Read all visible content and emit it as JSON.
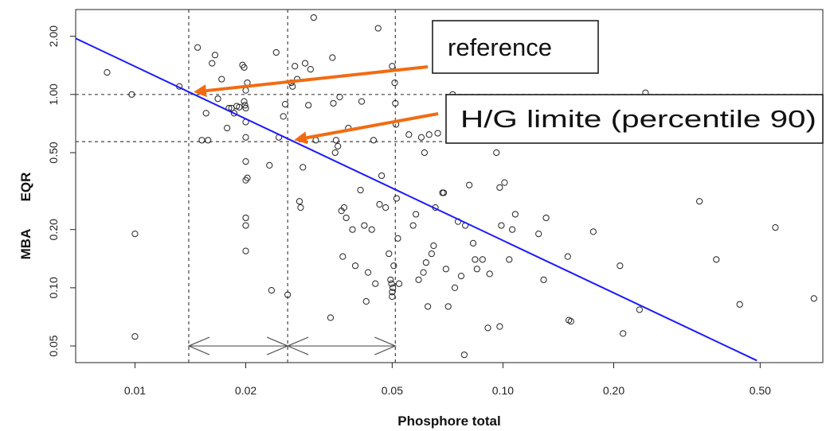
{
  "chart_data": {
    "type": "scatter",
    "title": "",
    "xlabel": "Phosphore total",
    "ylabel_parts": [
      "MBA",
      "EQR"
    ],
    "x_scale": "log",
    "y_scale": "log",
    "xlim": [
      0.0069,
      0.74
    ],
    "ylim": [
      0.041,
      2.75
    ],
    "x_ticks": [
      0.01,
      0.02,
      0.05,
      0.1,
      0.2,
      0.5
    ],
    "x_tick_labels": [
      "0.01",
      "0.02",
      "0.05",
      "0.10",
      "0.20",
      "0.50"
    ],
    "y_ticks": [
      0.05,
      0.1,
      0.2,
      0.5,
      1.0,
      2.0
    ],
    "y_tick_labels": [
      "0.05",
      "0.10",
      "0.20",
      "0.50",
      "1.00",
      "2.00"
    ],
    "grid": false,
    "points": [
      [
        0.0084,
        1.3
      ],
      [
        0.0098,
        1.0
      ],
      [
        0.01,
        0.19
      ],
      [
        0.01,
        0.056
      ],
      [
        0.0132,
        1.1
      ],
      [
        0.0148,
        1.75
      ],
      [
        0.0152,
        0.58
      ],
      [
        0.0156,
        0.8
      ],
      [
        0.0158,
        0.58
      ],
      [
        0.0162,
        1.45
      ],
      [
        0.0165,
        1.6
      ],
      [
        0.0168,
        0.95
      ],
      [
        0.0172,
        1.2
      ],
      [
        0.0178,
        0.67
      ],
      [
        0.018,
        0.85
      ],
      [
        0.0183,
        0.85
      ],
      [
        0.0186,
        0.8
      ],
      [
        0.0189,
        0.87
      ],
      [
        0.0192,
        0.86
      ],
      [
        0.0196,
        1.42
      ],
      [
        0.0198,
        1.38
      ],
      [
        0.0198,
        0.92
      ],
      [
        0.0199,
        0.88
      ],
      [
        0.02,
        0.85
      ],
      [
        0.02,
        1.05
      ],
      [
        0.02,
        0.72
      ],
      [
        0.02,
        0.6
      ],
      [
        0.02,
        0.45
      ],
      [
        0.02,
        0.36
      ],
      [
        0.02,
        0.23
      ],
      [
        0.02,
        0.21
      ],
      [
        0.02,
        0.155
      ],
      [
        0.0202,
        0.37
      ],
      [
        0.0202,
        1.15
      ],
      [
        0.0232,
        0.43
      ],
      [
        0.0235,
        0.097
      ],
      [
        0.0242,
        1.65
      ],
      [
        0.0246,
        0.6
      ],
      [
        0.0253,
        0.77
      ],
      [
        0.0256,
        0.89
      ],
      [
        0.026,
        0.092
      ],
      [
        0.0266,
        1.15
      ],
      [
        0.0268,
        1.1
      ],
      [
        0.0272,
        1.4
      ],
      [
        0.0276,
        1.2
      ],
      [
        0.028,
        0.28
      ],
      [
        0.0282,
        0.26
      ],
      [
        0.0286,
        0.42
      ],
      [
        0.029,
        1.45
      ],
      [
        0.0296,
        0.88
      ],
      [
        0.03,
        1.35
      ],
      [
        0.0306,
        2.5
      ],
      [
        0.031,
        0.58
      ],
      [
        0.034,
        0.07
      ],
      [
        0.0344,
        1.55
      ],
      [
        0.0346,
        0.9
      ],
      [
        0.035,
        0.5
      ],
      [
        0.0352,
        0.58
      ],
      [
        0.0356,
        0.54
      ],
      [
        0.036,
        0.97
      ],
      [
        0.0364,
        0.25
      ],
      [
        0.0367,
        0.145
      ],
      [
        0.037,
        0.26
      ],
      [
        0.0375,
        0.23
      ],
      [
        0.038,
        0.67
      ],
      [
        0.039,
        0.2
      ],
      [
        0.0397,
        0.13
      ],
      [
        0.041,
        0.32
      ],
      [
        0.0413,
        0.92
      ],
      [
        0.042,
        0.21
      ],
      [
        0.0425,
        0.085
      ],
      [
        0.043,
        0.12
      ],
      [
        0.044,
        0.2
      ],
      [
        0.0445,
        0.58
      ],
      [
        0.045,
        0.105
      ],
      [
        0.0458,
        2.2
      ],
      [
        0.0462,
        0.27
      ],
      [
        0.0468,
        0.38
      ],
      [
        0.048,
        0.26
      ],
      [
        0.049,
        0.15
      ],
      [
        0.0495,
        0.11
      ],
      [
        0.0498,
        0.105
      ],
      [
        0.05,
        1.4
      ],
      [
        0.05,
        0.095
      ],
      [
        0.05,
        0.09
      ],
      [
        0.0502,
        0.1
      ],
      [
        0.0505,
        0.13
      ],
      [
        0.0508,
        1.15
      ],
      [
        0.051,
        0.9
      ],
      [
        0.0512,
        0.7
      ],
      [
        0.0514,
        0.29
      ],
      [
        0.0518,
        0.18
      ],
      [
        0.0522,
        0.105
      ],
      [
        0.0555,
        0.62
      ],
      [
        0.057,
        0.21
      ],
      [
        0.058,
        0.24
      ],
      [
        0.059,
        0.11
      ],
      [
        0.06,
        0.6
      ],
      [
        0.0608,
        0.12
      ],
      [
        0.0612,
        0.5
      ],
      [
        0.0618,
        0.135
      ],
      [
        0.0625,
        0.08
      ],
      [
        0.063,
        0.62
      ],
      [
        0.064,
        0.15
      ],
      [
        0.0648,
        0.165
      ],
      [
        0.0655,
        0.26
      ],
      [
        0.0665,
        0.63
      ],
      [
        0.0685,
        0.31
      ],
      [
        0.069,
        0.31
      ],
      [
        0.07,
        0.125
      ],
      [
        0.071,
        0.08
      ],
      [
        0.072,
        0.64
      ],
      [
        0.073,
        1.0
      ],
      [
        0.074,
        0.1
      ],
      [
        0.0755,
        0.22
      ],
      [
        0.077,
        0.115
      ],
      [
        0.0785,
        0.045
      ],
      [
        0.079,
        0.21
      ],
      [
        0.08,
        0.6
      ],
      [
        0.081,
        0.34
      ],
      [
        0.083,
        0.17
      ],
      [
        0.084,
        0.14
      ],
      [
        0.085,
        0.125
      ],
      [
        0.088,
        0.14
      ],
      [
        0.091,
        0.062
      ],
      [
        0.092,
        0.118
      ],
      [
        0.096,
        0.5
      ],
      [
        0.098,
        0.33
      ],
      [
        0.098,
        0.063
      ],
      [
        0.099,
        0.21
      ],
      [
        0.1,
        0.6
      ],
      [
        0.101,
        0.35
      ],
      [
        0.104,
        0.14
      ],
      [
        0.106,
        0.2
      ],
      [
        0.108,
        0.24
      ],
      [
        0.125,
        0.19
      ],
      [
        0.129,
        0.11
      ],
      [
        0.131,
        0.23
      ],
      [
        0.15,
        0.145
      ],
      [
        0.151,
        0.068
      ],
      [
        0.153,
        0.067
      ],
      [
        0.176,
        0.195
      ],
      [
        0.208,
        0.13
      ],
      [
        0.212,
        0.058
      ],
      [
        0.235,
        0.077
      ],
      [
        0.244,
        1.02
      ],
      [
        0.342,
        0.28
      ],
      [
        0.38,
        0.14
      ],
      [
        0.44,
        0.082
      ],
      [
        0.55,
        0.205
      ],
      [
        0.7,
        0.088
      ]
    ],
    "regression_line": [
      [
        0.0069,
        1.95
      ],
      [
        0.49,
        0.042
      ]
    ],
    "hlines": [
      1.0,
      0.57
    ],
    "vlines": [
      0.014,
      0.026,
      0.051
    ],
    "arrow_range": [
      0.014,
      0.026,
      0.051
    ],
    "arrow_y": 0.05,
    "annotations": [
      {
        "text": "reference",
        "target": [
          0.014,
          1.0
        ]
      },
      {
        "text": "H/G limite (percentile 90)",
        "target": [
          0.026,
          0.57
        ]
      }
    ],
    "colors": {
      "regression": "#1a1aff",
      "arrow": "#f26b12",
      "points": "#222222",
      "guides": "#444444"
    }
  }
}
